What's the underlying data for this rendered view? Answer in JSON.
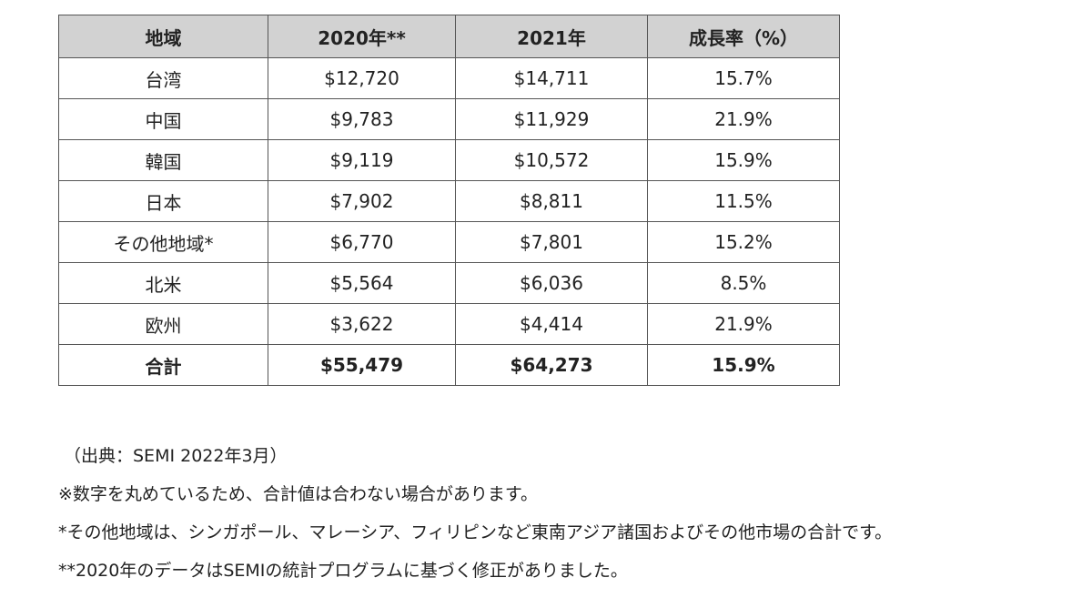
{
  "table": {
    "headers": [
      "地域",
      "2020年**",
      "2021年",
      "成長率（%）"
    ],
    "rows": [
      [
        "台湾",
        "$12,720",
        "$14,711",
        "15.7%"
      ],
      [
        "中国",
        "$9,783",
        "$11,929",
        "21.9%"
      ],
      [
        "韓国",
        "$9,119",
        "$10,572",
        "15.9%"
      ],
      [
        "日本",
        "$7,902",
        "$8,811",
        "11.5%"
      ],
      [
        "その他地域*",
        "$6,770",
        "$7,801",
        "15.2%"
      ],
      [
        "北米",
        "$5,564",
        "$6,036",
        "8.5%"
      ],
      [
        "欧州",
        "$3,622",
        "$4,414",
        "21.9%"
      ]
    ],
    "total": [
      "合計",
      "$55,479",
      "$64,273",
      "15.9%"
    ]
  },
  "notes": {
    "source": "（出典：SEMI 2022年3月）",
    "rounding": "※数字を丸めているため、合計値は合わない場合があります。",
    "other_regions": "*その他地域は、シンガポール、マレーシア、フィリピンなど東南アジア諸国およびその他市場の合計です。",
    "revision": "**2020年のデータはSEMIの統計プログラムに基づく修正がありました。"
  }
}
